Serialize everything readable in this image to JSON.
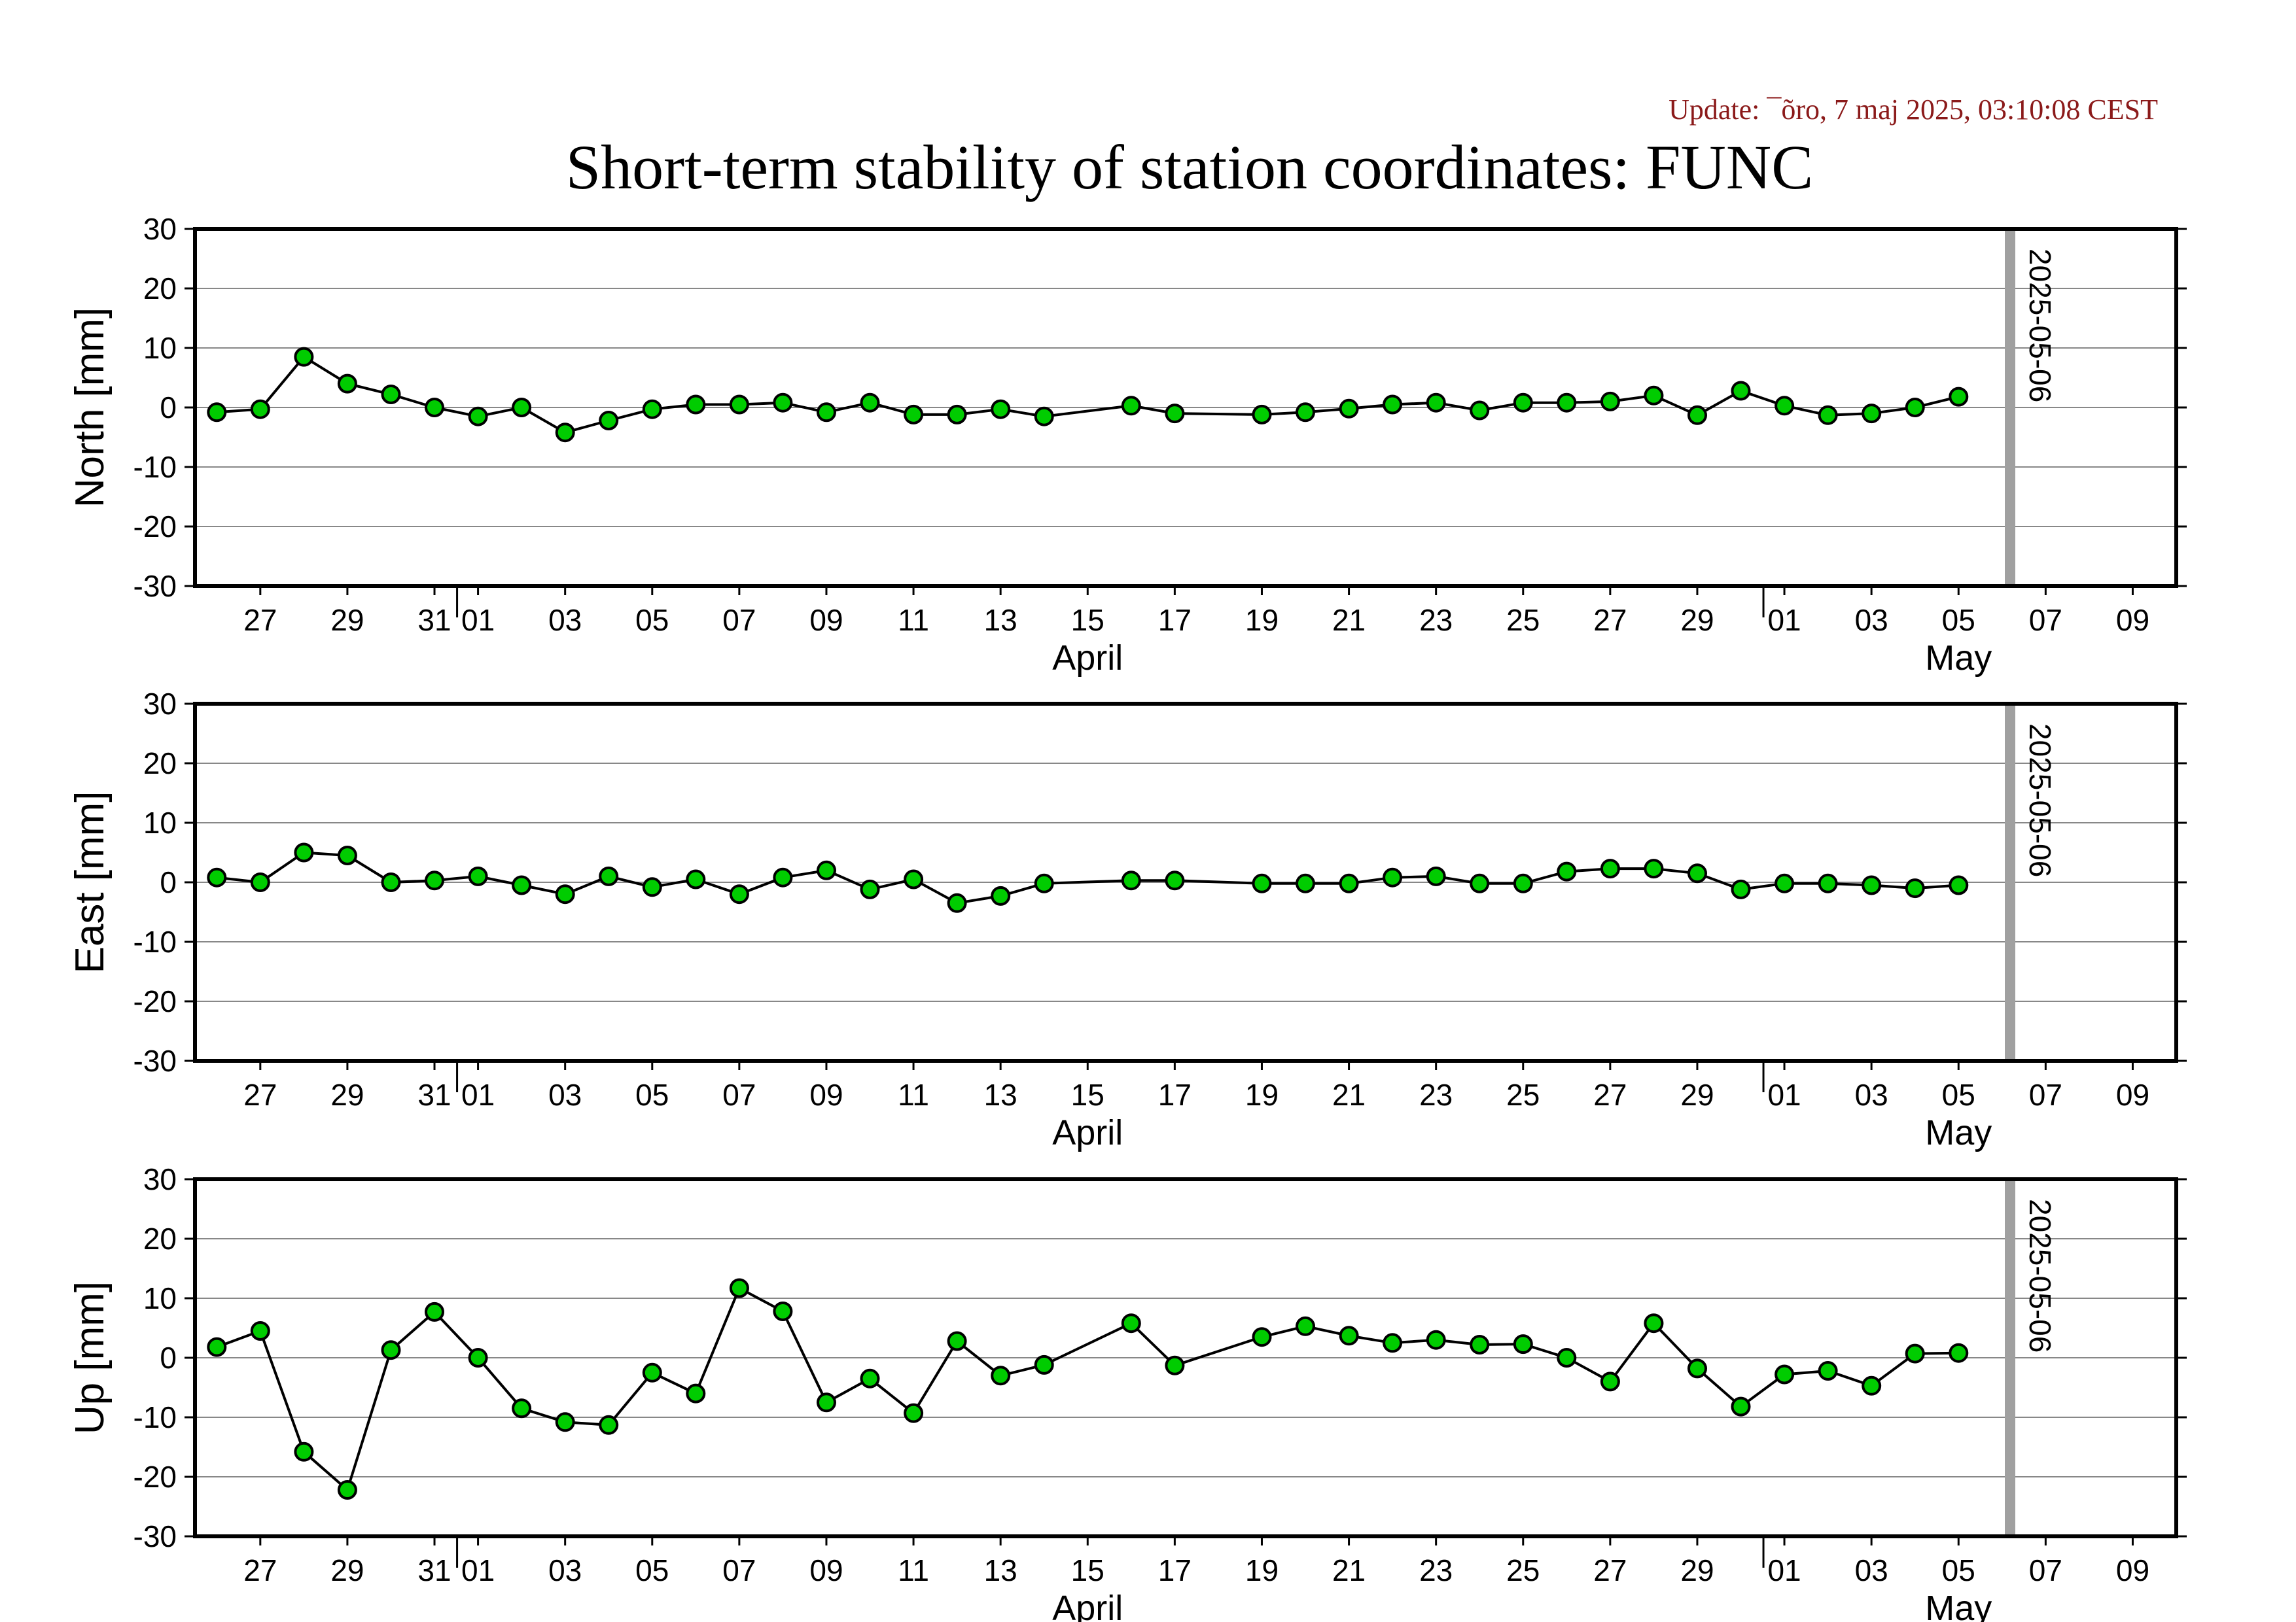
{
  "update_text": "Update: ¯õro, 7 maj 2025, 03:10:08 CEST",
  "colors": {
    "update_text": "#8b1a1a",
    "point_fill": "#00cc00",
    "point_stroke": "#000000",
    "line": "#000000",
    "grid": "#888888",
    "marker_line": "#a0a0a0",
    "frame": "#000000"
  },
  "chart_data": {
    "type": "line",
    "title": "Short-term stability of station coordinates: FUNC",
    "x_range": [
      "2025-03-25T12:00",
      "2025-05-10T00:00"
    ],
    "x_tick_labels": [
      "27",
      "29",
      "31",
      "01",
      "03",
      "05",
      "07",
      "09",
      "11",
      "13",
      "15",
      "17",
      "19",
      "21",
      "23",
      "25",
      "27",
      "29",
      "01",
      "03",
      "05",
      "07",
      "09"
    ],
    "month_labels": [
      "April",
      "May"
    ],
    "marker": {
      "date": "2025-05-06",
      "label": "2025-05-06"
    },
    "grid": true,
    "panels": [
      {
        "ylabel": "North [mm]",
        "ylim": [
          -30,
          30
        ],
        "y_ticks": [
          "30",
          "20",
          "10",
          "0",
          "-10",
          "-20",
          "-30"
        ],
        "points": [
          [
            "2025-03-26",
            -0.8
          ],
          [
            "2025-03-27",
            -0.3
          ],
          [
            "2025-03-28",
            8.5
          ],
          [
            "2025-03-29",
            4.0
          ],
          [
            "2025-03-30",
            2.2
          ],
          [
            "2025-03-31",
            0.0
          ],
          [
            "2025-04-01",
            -1.5
          ],
          [
            "2025-04-02",
            0.0
          ],
          [
            "2025-04-03",
            -4.2
          ],
          [
            "2025-04-04",
            -2.2
          ],
          [
            "2025-04-05",
            -0.3
          ],
          [
            "2025-04-06",
            0.5
          ],
          [
            "2025-04-07",
            0.5
          ],
          [
            "2025-04-08",
            0.8
          ],
          [
            "2025-04-09",
            -0.8
          ],
          [
            "2025-04-10",
            0.8
          ],
          [
            "2025-04-11",
            -1.2
          ],
          [
            "2025-04-12",
            -1.2
          ],
          [
            "2025-04-13",
            -0.3
          ],
          [
            "2025-04-14",
            -1.5
          ],
          [
            "2025-04-16",
            0.3
          ],
          [
            "2025-04-17",
            -1.0
          ],
          [
            "2025-04-19",
            -1.2
          ],
          [
            "2025-04-20",
            -0.8
          ],
          [
            "2025-04-21",
            -0.2
          ],
          [
            "2025-04-22",
            0.5
          ],
          [
            "2025-04-23",
            0.8
          ],
          [
            "2025-04-24",
            -0.5
          ],
          [
            "2025-04-25",
            0.8
          ],
          [
            "2025-04-26",
            0.8
          ],
          [
            "2025-04-27",
            1.0
          ],
          [
            "2025-04-28",
            2.0
          ],
          [
            "2025-04-29",
            -1.3
          ],
          [
            "2025-04-30",
            2.8
          ],
          [
            "2025-05-01",
            0.3
          ],
          [
            "2025-05-02",
            -1.3
          ],
          [
            "2025-05-03",
            -1.0
          ],
          [
            "2025-05-04",
            0.0
          ],
          [
            "2025-05-05",
            1.8
          ]
        ]
      },
      {
        "ylabel": "East [mm]",
        "ylim": [
          -30,
          30
        ],
        "y_ticks": [
          "30",
          "20",
          "10",
          "0",
          "-10",
          "-20",
          "-30"
        ],
        "points": [
          [
            "2025-03-26",
            0.8
          ],
          [
            "2025-03-27",
            0.0
          ],
          [
            "2025-03-28",
            5.0
          ],
          [
            "2025-03-29",
            4.5
          ],
          [
            "2025-03-30",
            0.0
          ],
          [
            "2025-03-31",
            0.3
          ],
          [
            "2025-04-01",
            1.0
          ],
          [
            "2025-04-02",
            -0.5
          ],
          [
            "2025-04-03",
            -2.0
          ],
          [
            "2025-04-04",
            1.0
          ],
          [
            "2025-04-05",
            -0.8
          ],
          [
            "2025-04-06",
            0.5
          ],
          [
            "2025-04-07",
            -2.0
          ],
          [
            "2025-04-08",
            0.8
          ],
          [
            "2025-04-09",
            2.0
          ],
          [
            "2025-04-10",
            -1.2
          ],
          [
            "2025-04-11",
            0.5
          ],
          [
            "2025-04-12",
            -3.5
          ],
          [
            "2025-04-13",
            -2.3
          ],
          [
            "2025-04-14",
            -0.2
          ],
          [
            "2025-04-16",
            0.3
          ],
          [
            "2025-04-17",
            0.3
          ],
          [
            "2025-04-19",
            -0.2
          ],
          [
            "2025-04-20",
            -0.2
          ],
          [
            "2025-04-21",
            -0.2
          ],
          [
            "2025-04-22",
            0.8
          ],
          [
            "2025-04-23",
            1.0
          ],
          [
            "2025-04-24",
            -0.2
          ],
          [
            "2025-04-25",
            -0.2
          ],
          [
            "2025-04-26",
            1.8
          ],
          [
            "2025-04-27",
            2.3
          ],
          [
            "2025-04-28",
            2.3
          ],
          [
            "2025-04-29",
            1.5
          ],
          [
            "2025-04-30",
            -1.2
          ],
          [
            "2025-05-01",
            -0.2
          ],
          [
            "2025-05-02",
            -0.2
          ],
          [
            "2025-05-03",
            -0.5
          ],
          [
            "2025-05-04",
            -1.0
          ],
          [
            "2025-05-05",
            -0.5
          ]
        ]
      },
      {
        "ylabel": "Up [mm]",
        "ylim": [
          -30,
          30
        ],
        "y_ticks": [
          "30",
          "20",
          "10",
          "0",
          "-10",
          "-20",
          "-30"
        ],
        "points": [
          [
            "2025-03-26",
            1.8
          ],
          [
            "2025-03-27",
            4.5
          ],
          [
            "2025-03-28",
            -15.8
          ],
          [
            "2025-03-29",
            -22.2
          ],
          [
            "2025-03-30",
            1.3
          ],
          [
            "2025-03-31",
            7.7
          ],
          [
            "2025-04-01",
            0.0
          ],
          [
            "2025-04-02",
            -8.5
          ],
          [
            "2025-04-03",
            -10.8
          ],
          [
            "2025-04-04",
            -11.3
          ],
          [
            "2025-04-05",
            -2.5
          ],
          [
            "2025-04-06",
            -6.0
          ],
          [
            "2025-04-07",
            11.7
          ],
          [
            "2025-04-08",
            7.8
          ],
          [
            "2025-04-09",
            -7.5
          ],
          [
            "2025-04-10",
            -3.5
          ],
          [
            "2025-04-11",
            -9.3
          ],
          [
            "2025-04-12",
            2.8
          ],
          [
            "2025-04-13",
            -3.0
          ],
          [
            "2025-04-14",
            -1.2
          ],
          [
            "2025-04-16",
            5.8
          ],
          [
            "2025-04-17",
            -1.3
          ],
          [
            "2025-04-19",
            3.5
          ],
          [
            "2025-04-20",
            5.3
          ],
          [
            "2025-04-21",
            3.7
          ],
          [
            "2025-04-22",
            2.5
          ],
          [
            "2025-04-23",
            3.0
          ],
          [
            "2025-04-24",
            2.2
          ],
          [
            "2025-04-25",
            2.3
          ],
          [
            "2025-04-26",
            0.0
          ],
          [
            "2025-04-27",
            -4.0
          ],
          [
            "2025-04-28",
            5.8
          ],
          [
            "2025-04-29",
            -1.8
          ],
          [
            "2025-04-30",
            -8.2
          ],
          [
            "2025-05-01",
            -2.8
          ],
          [
            "2025-05-02",
            -2.2
          ],
          [
            "2025-05-03",
            -4.7
          ],
          [
            "2025-05-04",
            0.7
          ],
          [
            "2025-05-05",
            0.8
          ]
        ]
      }
    ]
  }
}
